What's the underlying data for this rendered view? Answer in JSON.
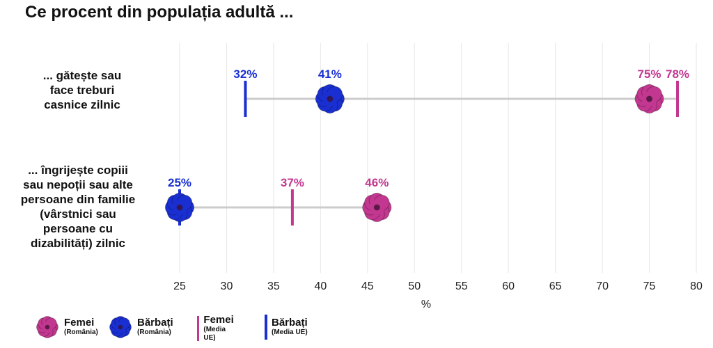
{
  "title": "Ce procent din populația adultă ...",
  "colors": {
    "women": "#C2378F",
    "men": "#1A2FD1",
    "connector": "#CCCCCC",
    "grid": "#E6E6E6"
  },
  "chart_data": {
    "type": "dumbbell",
    "title": "Ce procent din populația adultă ...",
    "xlabel": "%",
    "xlim": [
      25,
      80
    ],
    "xticks": [
      25,
      30,
      35,
      40,
      45,
      50,
      55,
      60,
      65,
      70,
      75,
      80
    ],
    "rows": [
      {
        "label": "... gătește sau face treburi casnice zilnic",
        "label_lines": [
          "... gătește sau",
          "face treburi",
          "casnice zilnic"
        ],
        "men_ro": 41,
        "women_ro": 75,
        "men_eu": 32,
        "women_eu": 78,
        "value_labels": {
          "men_ro": "41%",
          "women_ro": "75%",
          "men_eu": "32%",
          "women_eu": "78%"
        }
      },
      {
        "label": "... îngrijește copiii sau nepoții sau alte persoane din familie (vârstnici sau persoane cu dizabilități) zilnic",
        "label_lines": [
          "... îngrijește copiii",
          "sau nepoții sau alte",
          "persoane din familie",
          "(vârstnici sau",
          "persoane cu",
          "dizabilități) zilnic"
        ],
        "men_ro": 25,
        "women_ro": 46,
        "men_eu": 25,
        "women_eu": 37,
        "value_labels": {
          "men_ro": "25%",
          "women_ro": "46%",
          "men_eu": "25%",
          "women_eu": "37%"
        }
      }
    ],
    "legend": [
      {
        "name": "Femei",
        "sub": "(România)",
        "marker": "flower",
        "color": "#C2378F"
      },
      {
        "name": "Bărbați",
        "sub": "(România)",
        "marker": "flower",
        "color": "#1A2FD1"
      },
      {
        "name": "Femei",
        "sub": "(Media UE)",
        "marker": "bar",
        "color": "#C2378F"
      },
      {
        "name": "Bărbați",
        "sub": "(Media UE)",
        "marker": "bar",
        "color": "#1A2FD1"
      }
    ]
  }
}
